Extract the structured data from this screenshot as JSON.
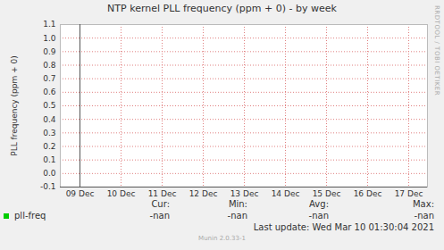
{
  "chart_data": {
    "type": "line",
    "title": "NTP kernel PLL frequency (ppm + 0) - by week",
    "y_label": "PLL frequency (ppm + 0)",
    "categories": [
      "09 Dec",
      "10 Dec",
      "11 Dec",
      "12 Dec",
      "13 Dec",
      "14 Dec",
      "15 Dec",
      "16 Dec",
      "17 Dec"
    ],
    "series": [
      {
        "name": "pll-freq",
        "color": "#00cc00",
        "values": [
          null,
          null,
          null,
          null,
          null,
          null,
          null,
          null,
          null
        ],
        "stats": [
          "-nan",
          "-nan",
          "-nan",
          "-nan"
        ]
      }
    ],
    "stat_labels": [
      "Cur:",
      "Min:",
      "Avg:",
      "Max:"
    ],
    "ylim": [
      -0.1,
      1.1
    ],
    "yticks": [
      -0.1,
      {
        "value": 0,
        "label": "0.0"
      },
      0.1,
      0.2,
      0.3,
      0.4,
      0.5,
      0.6,
      0.7,
      0.8,
      0.9,
      {
        "value": 1,
        "label": "1.0"
      },
      1.1
    ],
    "grid": true,
    "legend": "bottom",
    "footer": "Last update: Wed Mar 10 01:30:04 2021",
    "credit": "Munin 2.0.33-1",
    "side_text": "RRDTOOL / TOBI OETIKER"
  }
}
